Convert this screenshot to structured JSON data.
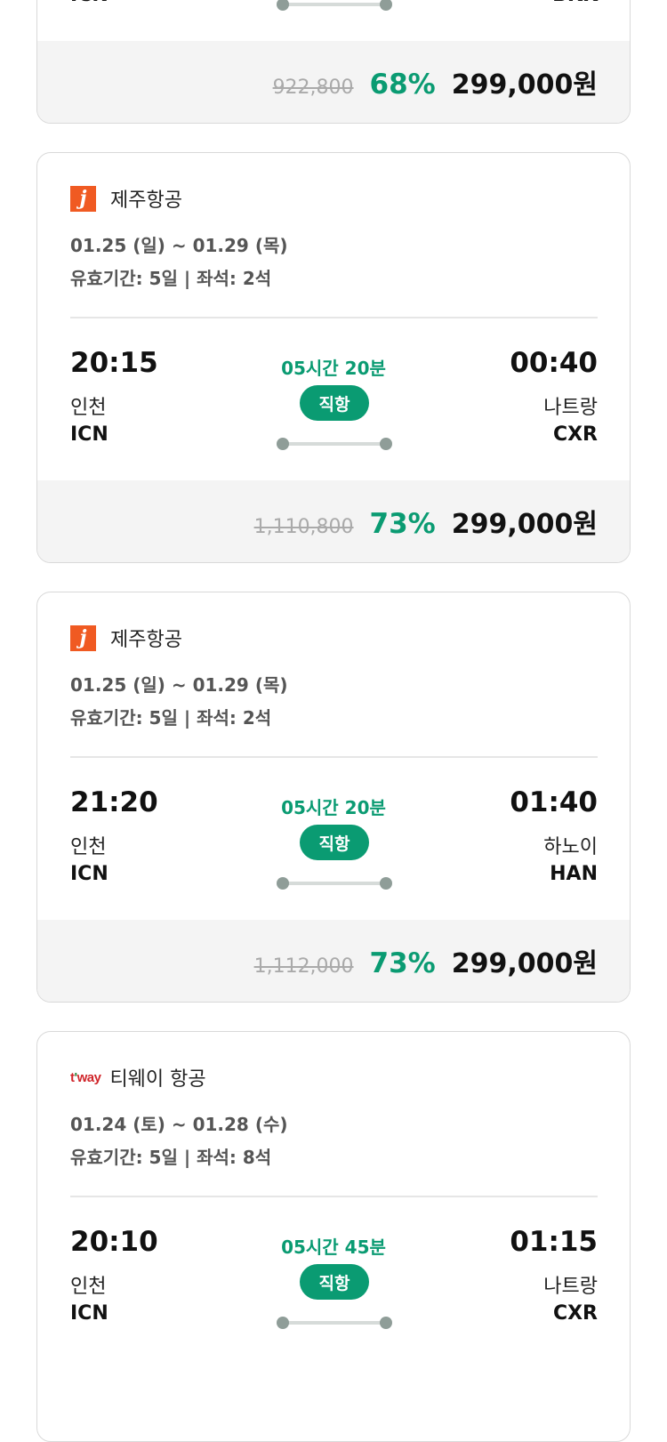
{
  "colors": {
    "accent": "#0a9b72",
    "jeju_logo": "#f05a22",
    "tway_logo": "#d0262b"
  },
  "cards": [
    {
      "airline": "",
      "logo": "",
      "dates": "",
      "info": "",
      "dep_time": "",
      "dep_city": "",
      "dep_code": "ICN",
      "duration": "",
      "badge": "",
      "arr_time": "",
      "arr_city": "",
      "arr_code": "BKK",
      "original_price": "922,800",
      "discount": "68%",
      "price": "299,000원"
    },
    {
      "airline": "제주항공",
      "logo": "jeju-air-logo",
      "logo_text": "J",
      "dates": "01.25 (일) ~ 01.29 (목)",
      "info": "유효기간: 5일 | 좌석: 2석",
      "dep_time": "20:15",
      "dep_city": "인천",
      "dep_code": "ICN",
      "duration": "05시간 20분",
      "badge": "직항",
      "arr_time": "00:40",
      "arr_city": "나트랑",
      "arr_code": "CXR",
      "original_price": "1,110,800",
      "discount": "73%",
      "price": "299,000원"
    },
    {
      "airline": "제주항공",
      "logo": "jeju-air-logo",
      "logo_text": "J",
      "dates": "01.25 (일) ~ 01.29 (목)",
      "info": "유효기간: 5일 | 좌석: 2석",
      "dep_time": "21:20",
      "dep_city": "인천",
      "dep_code": "ICN",
      "duration": "05시간 20분",
      "badge": "직항",
      "arr_time": "01:40",
      "arr_city": "하노이",
      "arr_code": "HAN",
      "original_price": "1,112,000",
      "discount": "73%",
      "price": "299,000원"
    },
    {
      "airline": "티웨이 항공",
      "logo": "tway-logo",
      "logo_text": "t'way",
      "dates": "01.24 (토) ~ 01.28 (수)",
      "info": "유효기간: 5일 | 좌석: 8석",
      "dep_time": "20:10",
      "dep_city": "인천",
      "dep_code": "ICN",
      "duration": "05시간 45분",
      "badge": "직항",
      "arr_time": "01:15",
      "arr_city": "나트랑",
      "arr_code": "CXR",
      "original_price": "",
      "discount": "",
      "price": ""
    }
  ]
}
